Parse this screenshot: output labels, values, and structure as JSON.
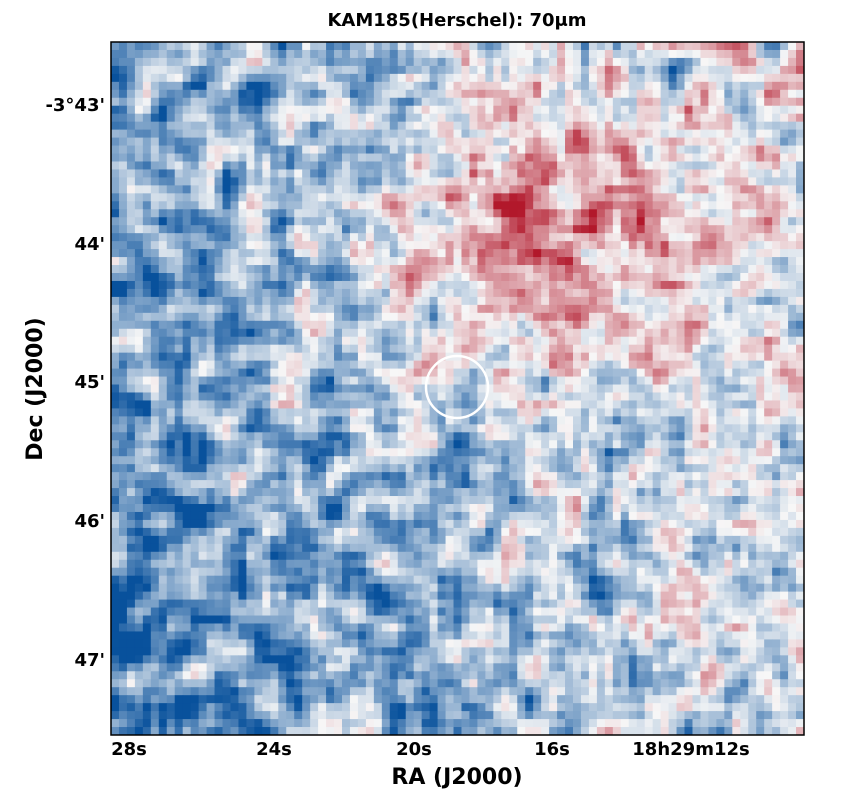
{
  "chart_data": {
    "type": "heatmap",
    "title": "KAM185(Herschel): 70μm",
    "xlabel": "RA (J2000)",
    "ylabel": "Dec (J2000)",
    "x_ticks": [
      "28s",
      "24s",
      "20s",
      "16s",
      "18h29m12s"
    ],
    "y_ticks": [
      "-3°43'",
      "44'",
      "45'",
      "46'",
      "47'"
    ],
    "colormap": "RdBu_r",
    "colors": {
      "low": "#08519c",
      "mid": "#f7f7f7",
      "high": "#b2182b"
    },
    "marker": {
      "type": "circle",
      "color": "#ffffff",
      "label": ""
    },
    "grid": false
  }
}
